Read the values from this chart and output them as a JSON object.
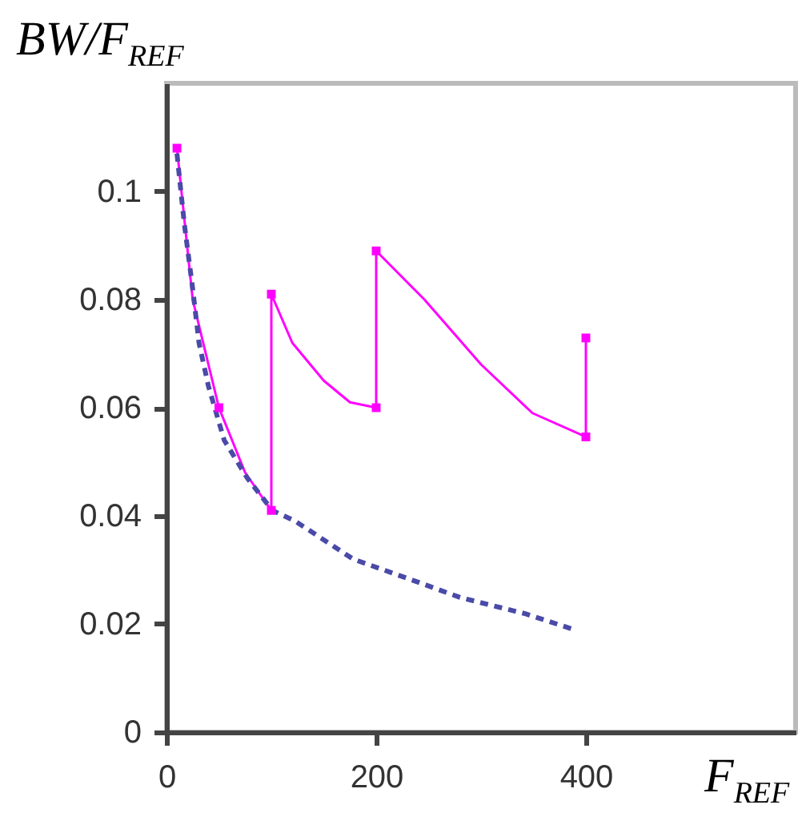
{
  "chart_data": {
    "type": "line",
    "ylabel": "BW/F$_{REF}$",
    "xlabel": "F$_{REF}$",
    "xlim": [
      0,
      600
    ],
    "xticks": [
      0,
      200,
      400
    ],
    "ylim": [
      0,
      0.12
    ],
    "yticks": [
      0,
      0.02,
      0.04,
      0.06,
      0.08,
      0.1
    ],
    "grid": false,
    "series": [
      {
        "color": "#ff00ff",
        "line_style": "solid",
        "marker": "none",
        "x": [
          10,
          25,
          50,
          75,
          100,
          100,
          120,
          150,
          175,
          200,
          200,
          246,
          300,
          349,
          400,
          400
        ],
        "values": [
          0.108,
          0.08,
          0.06,
          0.048,
          0.041,
          0.081,
          0.072,
          0.065,
          0.061,
          0.06,
          0.089,
          0.08,
          0.068,
          0.059,
          0.0546,
          0.0729
        ]
      },
      {
        "color": "#4a4aa8",
        "line_style": "dashed",
        "marker": "none",
        "x": [
          10,
          17,
          25,
          31,
          40,
          55,
          77,
          101,
          123,
          178,
          239,
          280,
          342,
          388
        ],
        "values": [
          0.107,
          0.094,
          0.082,
          0.072,
          0.064,
          0.054,
          0.047,
          0.041,
          0.039,
          0.032,
          0.0278,
          0.0249,
          0.0219,
          0.019
        ]
      },
      {
        "type": "scatter",
        "color": "#ff00ff",
        "marker": "square",
        "x": [
          10,
          50,
          100,
          100,
          200,
          200,
          400,
          400
        ],
        "values": [
          0.108,
          0.06,
          0.041,
          0.081,
          0.06,
          0.089,
          0.0546,
          0.0729
        ]
      }
    ]
  }
}
